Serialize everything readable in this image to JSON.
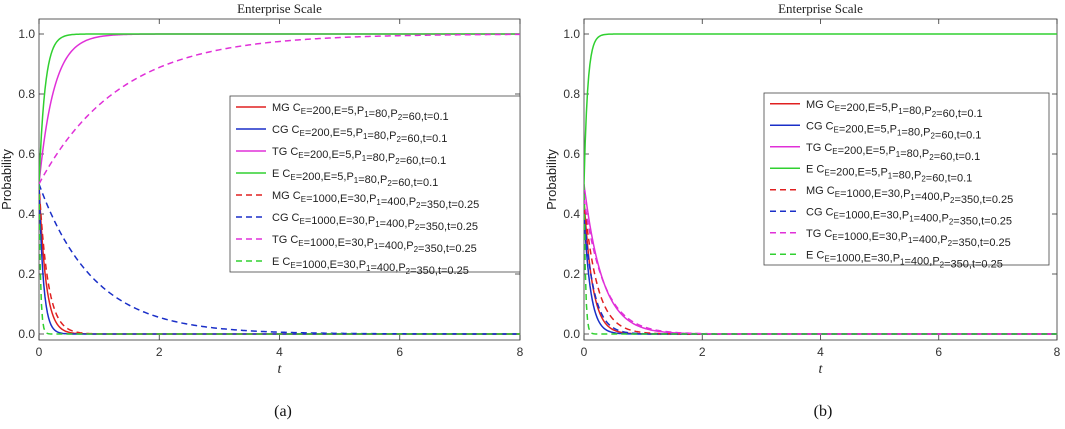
{
  "chart_data": [
    {
      "type": "line",
      "panel_label": "(a)",
      "title": "Enterprise Scale",
      "xlabel": "t",
      "ylabel": "Probability",
      "xlim": [
        0,
        8
      ],
      "ylim": [
        -0.02,
        1.05
      ],
      "xticks": [
        0,
        2,
        4,
        6,
        8
      ],
      "yticks": [
        0.0,
        0.2,
        0.4,
        0.6,
        0.8,
        1.0
      ],
      "tick_labels_y": [
        "0.0",
        "0.2",
        "0.4",
        "0.6",
        "0.8",
        "1.0"
      ],
      "tick_labels_x": [
        "0",
        "2",
        "4",
        "6",
        "8"
      ],
      "grid": false,
      "legend_position": "center-right",
      "series": [
        {
          "legend": "MG C<sub>E</sub>=200,E=5,P<sub>1</sub>=80,P<sub>2</sub>=60,t=0.1",
          "color": "#e02020",
          "dash": "solid",
          "start": 0.5,
          "end": 0.0,
          "rate": 9
        },
        {
          "legend": "CG C<sub>E</sub>=200,E=5,P<sub>1</sub>=80,P<sub>2</sub>=60,t=0.1",
          "color": "#1a2fc8",
          "dash": "solid",
          "start": 0.5,
          "end": 0.0,
          "rate": 14
        },
        {
          "legend": "TG C<sub>E</sub>=200,E=5,P<sub>1</sub>=80,P<sub>2</sub>=60,t=0.1",
          "color": "#e030d8",
          "dash": "solid",
          "start": 0.5,
          "end": 1.0,
          "rate": 4
        },
        {
          "legend": "E C<sub>E</sub>=200,E=5,P<sub>1</sub>=80,P<sub>2</sub>=60,t=0.1",
          "color": "#30d030",
          "dash": "solid",
          "start": 0.5,
          "end": 1.0,
          "rate": 10
        },
        {
          "legend": "MG C<sub>E</sub>=1000,E=30,P<sub>1</sub>=400,P<sub>2</sub>=350,t=0.25",
          "color": "#e02020",
          "dash": "dashed",
          "start": 0.5,
          "end": 0.0,
          "rate": 7
        },
        {
          "legend": "CG C<sub>E</sub>=1000,E=30,P<sub>1</sub>=400,P<sub>2</sub>=350,t=0.25",
          "color": "#1a2fc8",
          "dash": "dashed",
          "start": 0.5,
          "end": 0.0,
          "rate": 1.1
        },
        {
          "legend": "TG C<sub>E</sub>=1000,E=30,P<sub>1</sub>=400,P<sub>2</sub>=350,t=0.25",
          "color": "#e030d8",
          "dash": "dashed",
          "start": 0.5,
          "end": 1.0,
          "rate": 0.75
        },
        {
          "legend": "E C<sub>E</sub>=1000,E=30,P<sub>1</sub>=400,P<sub>2</sub>=350,t=0.25",
          "color": "#30d030",
          "dash": "dashed",
          "start": 0.5,
          "end": 0.0,
          "rate": 40
        }
      ]
    },
    {
      "type": "line",
      "panel_label": "(b)",
      "title": "Enterprise Scale",
      "xlabel": "t",
      "ylabel": "Probability",
      "xlim": [
        0,
        8
      ],
      "ylim": [
        -0.02,
        1.05
      ],
      "xticks": [
        0,
        2,
        4,
        6,
        8
      ],
      "yticks": [
        0.0,
        0.2,
        0.4,
        0.6,
        0.8,
        1.0
      ],
      "tick_labels_y": [
        "0.0",
        "0.2",
        "0.4",
        "0.6",
        "0.8",
        "1.0"
      ],
      "tick_labels_x": [
        "0",
        "2",
        "4",
        "6",
        "8"
      ],
      "grid": false,
      "legend_position": "center-right",
      "series": [
        {
          "legend": "MG C<sub>E</sub>=200,E=5,P<sub>1</sub>=80,P<sub>2</sub>=60,t=0.1",
          "color": "#e02020",
          "dash": "solid",
          "start": 0.45,
          "end": 0.0,
          "rate": 7
        },
        {
          "legend": "CG C<sub>E</sub>=200,E=5,P<sub>1</sub>=80,P<sub>2</sub>=60,t=0.1",
          "color": "#1a2fc8",
          "dash": "solid",
          "start": 0.4,
          "end": 0.0,
          "rate": 9
        },
        {
          "legend": "TG C<sub>E</sub>=200,E=5,P<sub>1</sub>=80,P<sub>2</sub>=60,t=0.1",
          "color": "#e030d8",
          "dash": "solid",
          "start": 0.5,
          "end": 0.0,
          "rate": 3.2
        },
        {
          "legend": "E C<sub>E</sub>=200,E=5,P<sub>1</sub>=80,P<sub>2</sub>=60,t=0.1",
          "color": "#30d030",
          "dash": "solid",
          "start": 0.5,
          "end": 1.0,
          "rate": 16
        },
        {
          "legend": "MG C<sub>E</sub>=1000,E=30,P<sub>1</sub>=400,P<sub>2</sub>=350,t=0.25",
          "color": "#e02020",
          "dash": "dashed",
          "start": 0.45,
          "end": 0.0,
          "rate": 4.5
        },
        {
          "legend": "CG C<sub>E</sub>=1000,E=30,P<sub>1</sub>=400,P<sub>2</sub>=350,t=0.25",
          "color": "#1a2fc8",
          "dash": "dashed",
          "start": 0.4,
          "end": 0.0,
          "rate": 6
        },
        {
          "legend": "TG C<sub>E</sub>=1000,E=30,P<sub>1</sub>=400,P<sub>2</sub>=350,t=0.25",
          "color": "#e030d8",
          "dash": "dashed",
          "start": 0.45,
          "end": 0.0,
          "rate": 2.9
        },
        {
          "legend": "E C<sub>E</sub>=1000,E=30,P<sub>1</sub>=400,P<sub>2</sub>=350,t=0.25",
          "color": "#30d030",
          "dash": "dashed",
          "start": 0.5,
          "end": 0.0,
          "rate": 40
        }
      ]
    }
  ]
}
